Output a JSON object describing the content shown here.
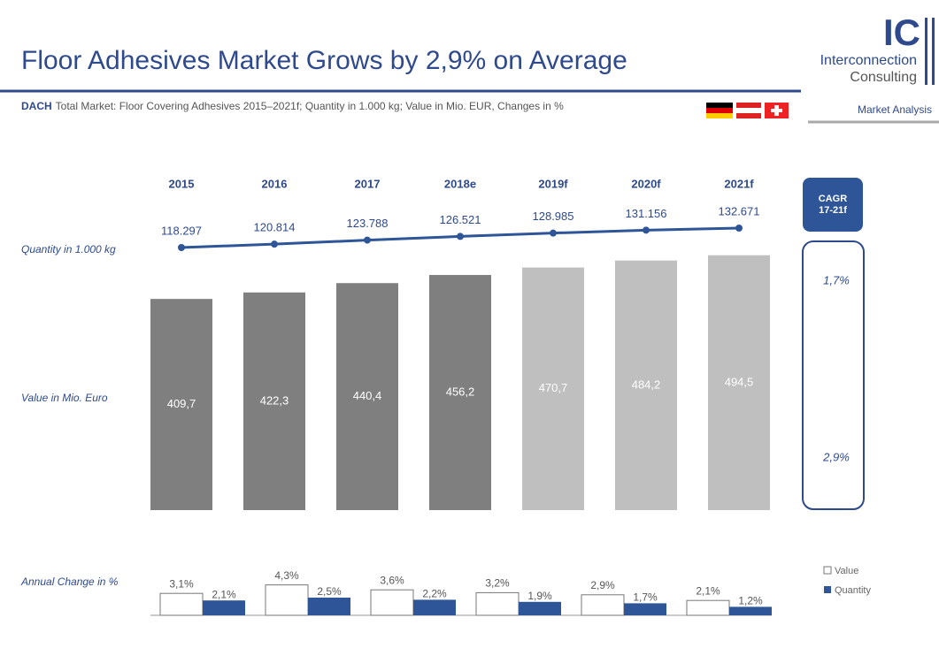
{
  "header": {
    "title": "Floor Adhesives Market Grows by 2,9% on Average",
    "subtitle_bold": "DACH",
    "subtitle": "Total Market: Floor Covering Adhesives 2015–2021f; Quantity in 1.000 kg; Value in Mio. EUR, Changes in %",
    "logo": {
      "mark": "IC",
      "line1": "Interconnection",
      "line2": "Consulting"
    },
    "section": "Market Analysis"
  },
  "chart_data": {
    "type": "bar",
    "categories": [
      "2015",
      "2016",
      "2017",
      "2018e",
      "2019f",
      "2020f",
      "2021f"
    ],
    "quantity": {
      "name": "Quantity in 1.000 kg",
      "color": "#2e5597",
      "values": [
        118297,
        120814,
        123788,
        126521,
        128985,
        131156,
        132671
      ],
      "value_labels": [
        "118.297",
        "120.814",
        "123.788",
        "126.521",
        "128.985",
        "131.156",
        "132.671"
      ]
    },
    "value": {
      "name": "Value in Mio. Euro",
      "colors": [
        "#7f7f7f",
        "#7f7f7f",
        "#7f7f7f",
        "#7f7f7f",
        "#bfbfbf",
        "#bfbfbf",
        "#bfbfbf"
      ],
      "values": [
        409.7,
        422.3,
        440.4,
        456.2,
        470.7,
        484.2,
        494.5
      ],
      "value_labels": [
        "409,7",
        "422,3",
        "440,4",
        "456,2",
        "470,7",
        "484,2",
        "494,5"
      ]
    },
    "annual_change": {
      "name": "Annual Change in %",
      "series": [
        {
          "name": "Value",
          "color": "#ffffff",
          "values": [
            3.1,
            4.3,
            3.6,
            3.2,
            2.9,
            2.1
          ],
          "value_labels": [
            "3,1%",
            "4,3%",
            "3,6%",
            "3,2%",
            "2,9%",
            "2,1%"
          ]
        },
        {
          "name": "Quantity",
          "color": "#2e5597",
          "values": [
            2.1,
            2.5,
            2.2,
            1.9,
            1.7,
            1.2
          ],
          "value_labels": [
            "2,1%",
            "2,5%",
            "2,2%",
            "1,9%",
            "1,7%",
            "1,2%"
          ]
        }
      ]
    },
    "cagr": {
      "title": [
        "CAGR",
        "17-21f"
      ],
      "quantity": "1,7%",
      "value": "2,9%"
    }
  }
}
